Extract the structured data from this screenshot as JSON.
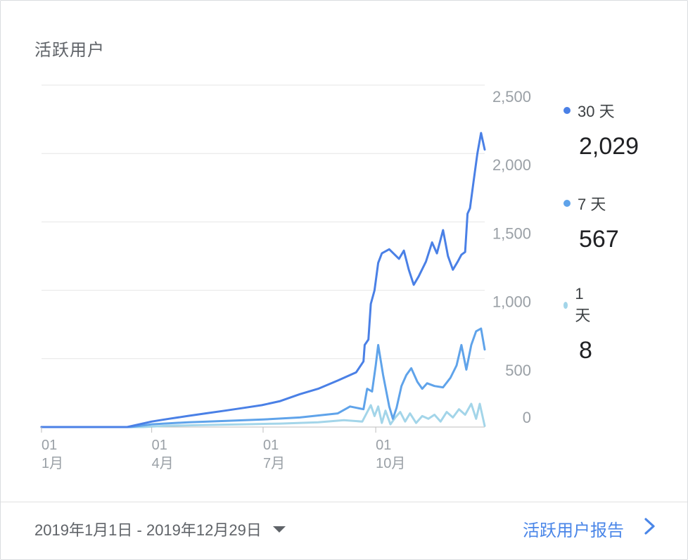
{
  "card": {
    "title": "活跃用户"
  },
  "legend": [
    {
      "label": "30 天",
      "value": "2,029",
      "color": "#4a80e6"
    },
    {
      "label": "7 天",
      "value": "567",
      "color": "#5fa3ea"
    },
    {
      "label": "1 天",
      "value": "8",
      "color": "#a3d5e9"
    }
  ],
  "footer": {
    "date_range": "2019年1月1日 - 2019年12月29日",
    "report_link": "活跃用户报告",
    "icons": {
      "dropdown": "caret-down-icon",
      "link": "chevron-right-icon"
    }
  },
  "chart_data": {
    "type": "line",
    "y_ticks": [
      "0",
      "500",
      "1,000",
      "1,500",
      "2,000",
      "2,500"
    ],
    "ylim": [
      0,
      2500
    ],
    "x_ticks": [
      {
        "day": "01",
        "month": "1月",
        "date": "2019-01-01"
      },
      {
        "day": "01",
        "month": "4月",
        "date": "2019-04-01"
      },
      {
        "day": "01",
        "month": "7月",
        "date": "2019-07-01"
      },
      {
        "day": "01",
        "month": "10月",
        "date": "2019-10-01"
      }
    ],
    "xlim": [
      "2019-01-01",
      "2019-12-29"
    ],
    "grid": true,
    "legend_position": "right",
    "series": [
      {
        "name": "30 天",
        "color": "#4a80e6",
        "points": [
          [
            "2019-01-01",
            0
          ],
          [
            "2019-03-12",
            0
          ],
          [
            "2019-03-22",
            20
          ],
          [
            "2019-04-01",
            40
          ],
          [
            "2019-04-15",
            60
          ],
          [
            "2019-04-30",
            80
          ],
          [
            "2019-05-15",
            100
          ],
          [
            "2019-05-31",
            120
          ],
          [
            "2019-06-15",
            140
          ],
          [
            "2019-06-30",
            160
          ],
          [
            "2019-07-15",
            190
          ],
          [
            "2019-07-31",
            240
          ],
          [
            "2019-08-15",
            280
          ],
          [
            "2019-08-31",
            340
          ],
          [
            "2019-09-15",
            400
          ],
          [
            "2019-09-21",
            480
          ],
          [
            "2019-09-22",
            600
          ],
          [
            "2019-09-25",
            640
          ],
          [
            "2019-09-27",
            900
          ],
          [
            "2019-09-30",
            1000
          ],
          [
            "2019-10-03",
            1200
          ],
          [
            "2019-10-06",
            1270
          ],
          [
            "2019-10-12",
            1300
          ],
          [
            "2019-10-20",
            1230
          ],
          [
            "2019-10-24",
            1290
          ],
          [
            "2019-10-28",
            1150
          ],
          [
            "2019-11-01",
            1040
          ],
          [
            "2019-11-05",
            1100
          ],
          [
            "2019-11-11",
            1210
          ],
          [
            "2019-11-16",
            1350
          ],
          [
            "2019-11-20",
            1270
          ],
          [
            "2019-11-25",
            1440
          ],
          [
            "2019-11-29",
            1250
          ],
          [
            "2019-12-03",
            1150
          ],
          [
            "2019-12-07",
            1210
          ],
          [
            "2019-12-10",
            1260
          ],
          [
            "2019-12-13",
            1280
          ],
          [
            "2019-12-15",
            1560
          ],
          [
            "2019-12-17",
            1600
          ],
          [
            "2019-12-20",
            1800
          ],
          [
            "2019-12-23",
            2000
          ],
          [
            "2019-12-26",
            2150
          ],
          [
            "2019-12-29",
            2029
          ]
        ]
      },
      {
        "name": "7 天",
        "color": "#5fa3ea",
        "points": [
          [
            "2019-01-01",
            0
          ],
          [
            "2019-03-15",
            0
          ],
          [
            "2019-04-01",
            20
          ],
          [
            "2019-05-01",
            35
          ],
          [
            "2019-06-01",
            45
          ],
          [
            "2019-07-01",
            55
          ],
          [
            "2019-07-31",
            70
          ],
          [
            "2019-08-31",
            100
          ],
          [
            "2019-09-10",
            150
          ],
          [
            "2019-09-21",
            130
          ],
          [
            "2019-09-24",
            280
          ],
          [
            "2019-09-28",
            260
          ],
          [
            "2019-10-01",
            450
          ],
          [
            "2019-10-03",
            600
          ],
          [
            "2019-10-07",
            380
          ],
          [
            "2019-10-12",
            150
          ],
          [
            "2019-10-15",
            60
          ],
          [
            "2019-10-18",
            140
          ],
          [
            "2019-10-22",
            300
          ],
          [
            "2019-10-26",
            380
          ],
          [
            "2019-10-30",
            430
          ],
          [
            "2019-11-04",
            330
          ],
          [
            "2019-11-08",
            280
          ],
          [
            "2019-11-12",
            320
          ],
          [
            "2019-11-18",
            300
          ],
          [
            "2019-11-25",
            290
          ],
          [
            "2019-12-01",
            360
          ],
          [
            "2019-12-06",
            450
          ],
          [
            "2019-12-10",
            600
          ],
          [
            "2019-12-14",
            420
          ],
          [
            "2019-12-18",
            600
          ],
          [
            "2019-12-22",
            700
          ],
          [
            "2019-12-26",
            720
          ],
          [
            "2019-12-29",
            567
          ]
        ]
      },
      {
        "name": "1 天",
        "color": "#a3d5e9",
        "points": [
          [
            "2019-01-01",
            0
          ],
          [
            "2019-03-25",
            0
          ],
          [
            "2019-04-15",
            10
          ],
          [
            "2019-05-15",
            15
          ],
          [
            "2019-06-15",
            20
          ],
          [
            "2019-07-15",
            25
          ],
          [
            "2019-08-15",
            35
          ],
          [
            "2019-09-05",
            50
          ],
          [
            "2019-09-20",
            40
          ],
          [
            "2019-09-27",
            160
          ],
          [
            "2019-09-30",
            80
          ],
          [
            "2019-10-03",
            150
          ],
          [
            "2019-10-06",
            30
          ],
          [
            "2019-10-09",
            120
          ],
          [
            "2019-10-13",
            20
          ],
          [
            "2019-10-17",
            70
          ],
          [
            "2019-10-21",
            110
          ],
          [
            "2019-10-25",
            40
          ],
          [
            "2019-10-29",
            100
          ],
          [
            "2019-11-03",
            30
          ],
          [
            "2019-11-08",
            80
          ],
          [
            "2019-11-13",
            60
          ],
          [
            "2019-11-18",
            90
          ],
          [
            "2019-11-23",
            40
          ],
          [
            "2019-11-28",
            110
          ],
          [
            "2019-12-03",
            70
          ],
          [
            "2019-12-08",
            130
          ],
          [
            "2019-12-13",
            90
          ],
          [
            "2019-12-18",
            170
          ],
          [
            "2019-12-22",
            60
          ],
          [
            "2019-12-25",
            170
          ],
          [
            "2019-12-29",
            8
          ]
        ]
      }
    ]
  }
}
